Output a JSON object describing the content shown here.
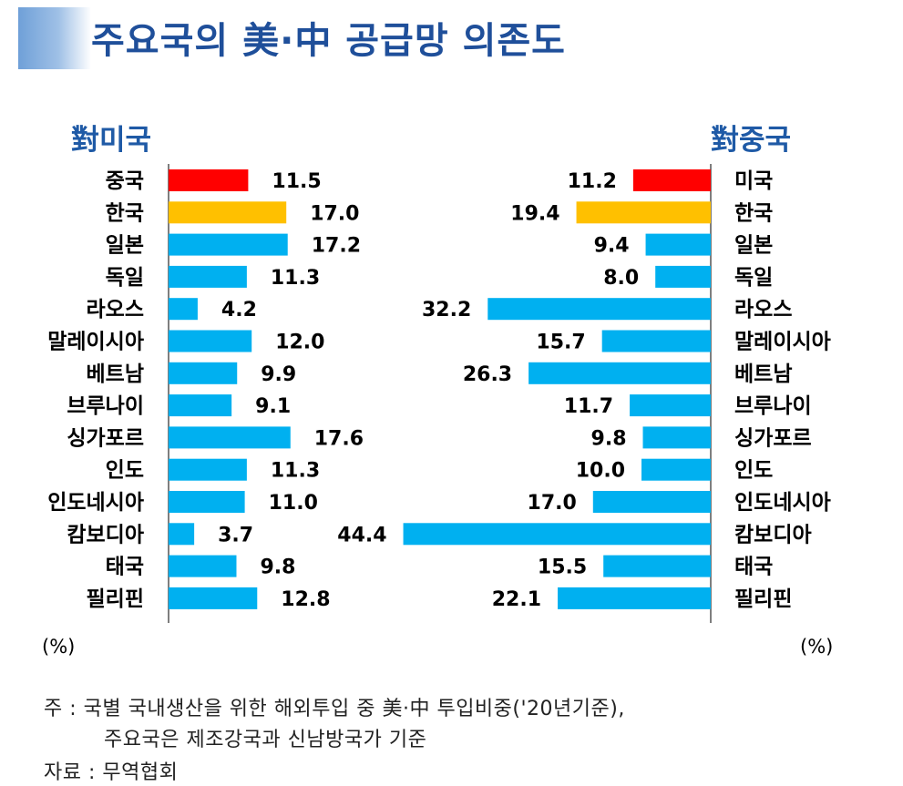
{
  "title": "주요국의 美·中 공급망 의존도",
  "unit_label": "(%)",
  "notes": {
    "line1": "주 : 국별 국내생산을 위한 해외투입 중 美·中 투입비중('20년기준),",
    "line2": "주요국은 제조강국과 신남방국가 기준",
    "source": "자료 : 무역협회"
  },
  "colors": {
    "top": "#ff0000",
    "korea": "#ffc000",
    "other": "#00b0f0",
    "title": "#1f4f9a"
  },
  "chart_data": [
    {
      "type": "bar",
      "orientation": "horizontal",
      "title": "對미국",
      "unit": "%",
      "categories": [
        "중국",
        "한국",
        "일본",
        "독일",
        "라오스",
        "말레이시아",
        "베트남",
        "브루나이",
        "싱가포르",
        "인도",
        "인도네시아",
        "캄보디아",
        "태국",
        "필리핀"
      ],
      "values": [
        11.5,
        17.0,
        17.2,
        11.3,
        4.2,
        12.0,
        9.9,
        9.1,
        17.6,
        11.3,
        11.0,
        3.7,
        9.8,
        12.8
      ]
    },
    {
      "type": "bar",
      "orientation": "horizontal",
      "title": "對중국",
      "unit": "%",
      "categories": [
        "미국",
        "한국",
        "일본",
        "독일",
        "라오스",
        "말레이시아",
        "베트남",
        "브루나이",
        "싱가포르",
        "인도",
        "인도네시아",
        "캄보디아",
        "태국",
        "필리핀"
      ],
      "values": [
        11.2,
        19.4,
        9.4,
        8.0,
        32.2,
        15.7,
        26.3,
        11.7,
        9.8,
        10.0,
        17.0,
        44.4,
        15.5,
        22.1
      ]
    }
  ]
}
